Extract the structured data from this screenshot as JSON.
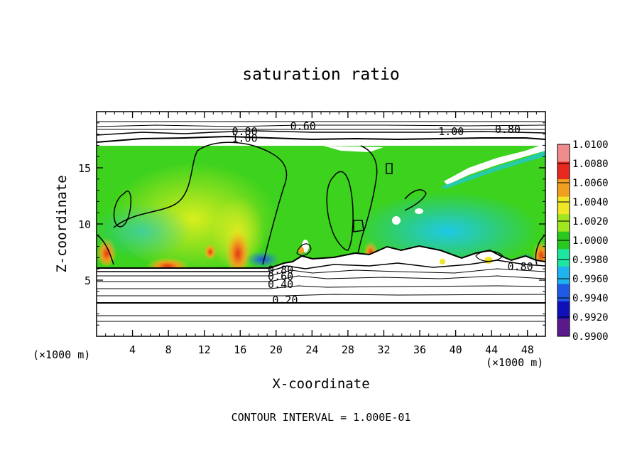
{
  "chart_data": {
    "type": "heatmap",
    "title": "saturation ratio",
    "xlabel": "X-coordinate",
    "ylabel": "Z-coordinate",
    "x_unit_left": "(×1000 m)",
    "x_unit_right": "(×1000 m)",
    "footer": "CONTOUR INTERVAL = 1.000E-01",
    "xlim": [
      0,
      50
    ],
    "ylim": [
      0,
      20
    ],
    "x_ticks": [
      4,
      8,
      12,
      16,
      20,
      24,
      28,
      32,
      36,
      40,
      44,
      48
    ],
    "y_ticks": [
      5,
      10,
      15
    ],
    "x_minor_step": 1,
    "y_minor_step": 1,
    "colorbar": {
      "labels": [
        "0.9900",
        "0.9920",
        "0.9940",
        "0.9960",
        "0.9980",
        "1.0000",
        "1.0020",
        "1.0040",
        "1.0060",
        "1.0080",
        "1.0100"
      ],
      "colors": [
        "#5a1a8c",
        "#1010b8",
        "#1e5ae6",
        "#1eb4f0",
        "#1ee6a0",
        "#28c81e",
        "#a0e61e",
        "#f0e628",
        "#f0a01e",
        "#e6281e",
        "#f08c8c"
      ]
    },
    "contour_labels": [
      {
        "text": "0.60",
        "x": 23.0,
        "y": 18.4
      },
      {
        "text": "0.80",
        "x": 16.5,
        "y": 17.9
      },
      {
        "text": "1.00",
        "x": 16.5,
        "y": 17.3
      },
      {
        "text": "1.00",
        "x": 39.5,
        "y": 17.9
      },
      {
        "text": "0.80",
        "x": 45.8,
        "y": 18.1
      },
      {
        "text": "0.80",
        "x": 20.5,
        "y": 5.6
      },
      {
        "text": "0.60",
        "x": 20.5,
        "y": 5.0
      },
      {
        "text": "0.40",
        "x": 20.5,
        "y": 4.3
      },
      {
        "text": "0.20",
        "x": 21.0,
        "y": 2.9
      },
      {
        "text": "0.80",
        "x": 47.2,
        "y": 5.9
      }
    ]
  }
}
